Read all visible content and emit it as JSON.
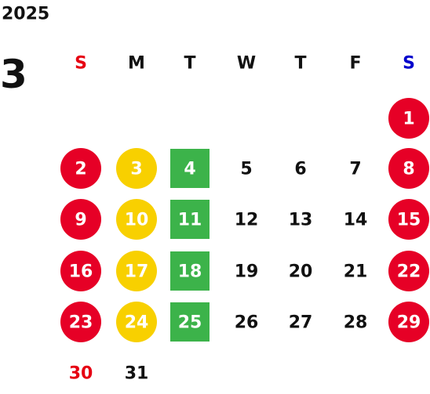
{
  "header": {
    "year": "2025",
    "month": "3"
  },
  "weekdays": [
    {
      "text": "S",
      "color": "#e60012"
    },
    {
      "text": "M",
      "color": "#111111"
    },
    {
      "text": "T",
      "color": "#111111"
    },
    {
      "text": "W",
      "color": "#111111"
    },
    {
      "text": "T",
      "color": "#111111"
    },
    {
      "text": "F",
      "color": "#111111"
    },
    {
      "text": "S",
      "color": "#0000cc"
    }
  ],
  "weeks": [
    [
      null,
      null,
      null,
      null,
      null,
      null,
      {
        "text": "1",
        "shape": "circle",
        "fill": "#e60026"
      }
    ],
    [
      {
        "text": "2",
        "shape": "circle",
        "fill": "#e60026"
      },
      {
        "text": "3",
        "shape": "circle",
        "fill": "#f8d000"
      },
      {
        "text": "4",
        "shape": "square",
        "fill": "#3cb34a"
      },
      {
        "text": "5"
      },
      {
        "text": "6"
      },
      {
        "text": "7"
      },
      {
        "text": "8",
        "shape": "circle",
        "fill": "#e60026"
      }
    ],
    [
      {
        "text": "9",
        "shape": "circle",
        "fill": "#e60026"
      },
      {
        "text": "10",
        "shape": "circle",
        "fill": "#f8d000"
      },
      {
        "text": "11",
        "shape": "square",
        "fill": "#3cb34a"
      },
      {
        "text": "12"
      },
      {
        "text": "13"
      },
      {
        "text": "14"
      },
      {
        "text": "15",
        "shape": "circle",
        "fill": "#e60026"
      }
    ],
    [
      {
        "text": "16",
        "shape": "circle",
        "fill": "#e60026"
      },
      {
        "text": "17",
        "shape": "circle",
        "fill": "#f8d000"
      },
      {
        "text": "18",
        "shape": "square",
        "fill": "#3cb34a"
      },
      {
        "text": "19"
      },
      {
        "text": "20"
      },
      {
        "text": "21"
      },
      {
        "text": "22",
        "shape": "circle",
        "fill": "#e60026"
      }
    ],
    [
      {
        "text": "23",
        "shape": "circle",
        "fill": "#e60026"
      },
      {
        "text": "24",
        "shape": "circle",
        "fill": "#f8d000"
      },
      {
        "text": "25",
        "shape": "square",
        "fill": "#3cb34a"
      },
      {
        "text": "26"
      },
      {
        "text": "27"
      },
      {
        "text": "28"
      },
      {
        "text": "29",
        "shape": "circle",
        "fill": "#e60026"
      }
    ],
    [
      {
        "text": "30",
        "color": "#e60012"
      },
      {
        "text": "31"
      },
      null,
      null,
      null,
      null,
      null
    ]
  ]
}
